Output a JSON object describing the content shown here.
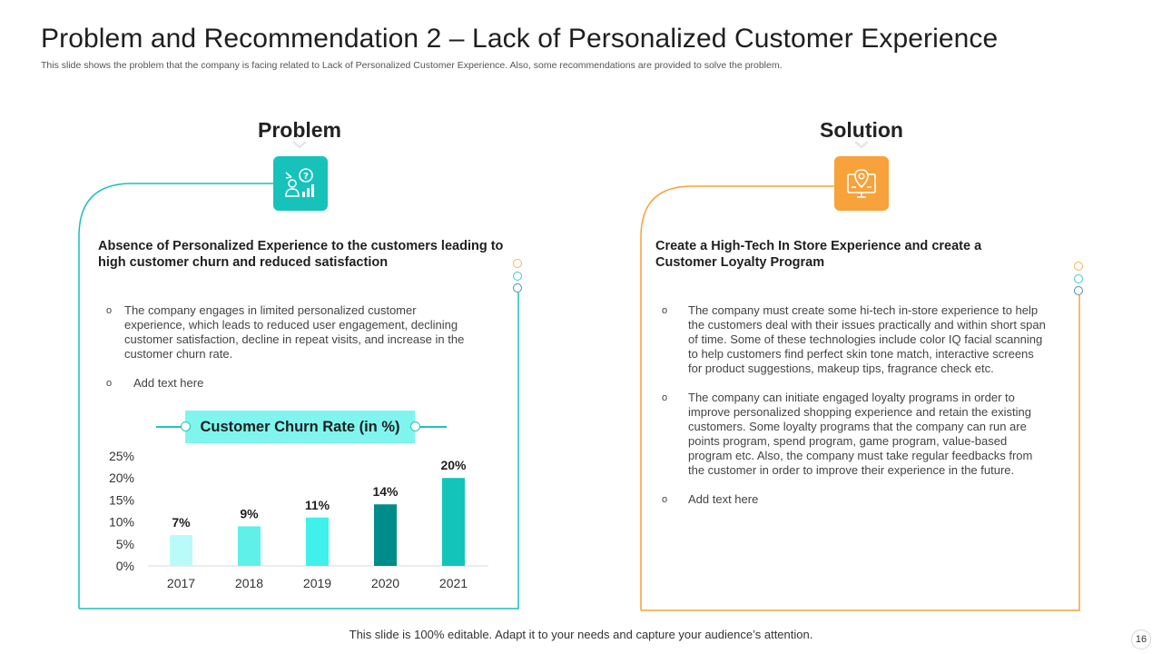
{
  "slide": {
    "title": "Problem and Recommendation 2 – Lack of Personalized Customer Experience",
    "subtitle": "This slide shows the problem that the company is facing related to Lack of Personalized Customer Experience. Also, some recommendations are provided to solve the problem.",
    "footer": "This slide is 100% editable. Adapt it to your needs and capture your audience’s attention.",
    "page_number": "16"
  },
  "colors": {
    "problem_accent": "#17c2bb",
    "solution_accent": "#f7a23a",
    "bar_colors": [
      "#b9fbf8",
      "#5ff0ea",
      "#3ff1ea",
      "#008c88",
      "#13c4bb"
    ]
  },
  "problem": {
    "heading": "Problem",
    "icon": "analytics-person-icon",
    "lead": "Absence of Personalized Experience to the customers leading to high customer churn and reduced satisfaction",
    "bullets": [
      "The company engages in limited personalized customer experience,  which leads to reduced user engagement, declining customer satisfaction, decline in repeat visits, and increase in the customer churn rate.",
      "Add text here"
    ],
    "bullet_marker": "o"
  },
  "solution": {
    "heading": "Solution",
    "icon": "monitor-location-icon",
    "lead": "Create a High-Tech In Store Experience and create a Customer Loyalty Program",
    "bullets": [
      "The company must create some hi-tech in-store experience to help the customers deal with their issues practically and within short span of time. Some of these technologies include color IQ facial scanning to help customers find perfect skin tone match, interactive screens  for product suggestions, makeup tips, fragrance check etc.",
      "The company can initiate engaged loyalty programs in order to improve personalized shopping experience  and retain the existing customers. Some loyalty programs that the company can run are points program, spend program, game program, value-based program etc. Also, the company must take regular feedbacks from the customer in order to improve their experience  in the future.",
      "Add text here"
    ],
    "bullet_marker": "o"
  },
  "chart_data": {
    "type": "bar",
    "title": "Customer Churn Rate (in %)",
    "categories": [
      "2017",
      "2018",
      "2019",
      "2020",
      "2021"
    ],
    "values": [
      7,
      9,
      11,
      14,
      20
    ],
    "data_labels": [
      "7%",
      "9%",
      "11%",
      "14%",
      "20%"
    ],
    "yticks": [
      "0%",
      "5%",
      "10%",
      "15%",
      "20%",
      "25%"
    ],
    "ylim": [
      0,
      25
    ],
    "xlabel": "",
    "ylabel": "",
    "grid": false,
    "legend": "none"
  }
}
